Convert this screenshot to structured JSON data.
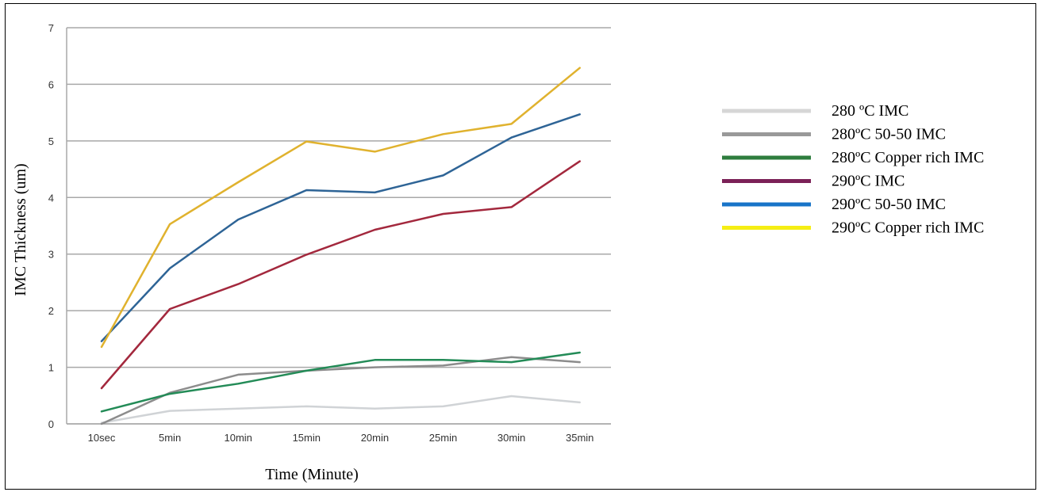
{
  "chart_data": {
    "type": "line",
    "title": "",
    "xlabel": "Time (Minute)",
    "ylabel": "IMC Thickness (um)",
    "categories": [
      "10sec",
      "5min",
      "10min",
      "15min",
      "20min",
      "25min",
      "30min",
      "35min"
    ],
    "ylim": [
      0,
      7
    ],
    "yticks": [
      "0",
      "1",
      "2",
      "3",
      "4",
      "5",
      "6",
      "7"
    ],
    "grid": true,
    "legend_position": "right",
    "series": [
      {
        "name": "280 ºC IMC",
        "color": "#d0d3d6",
        "legend_color": "#d6d6d6",
        "values": [
          0.02,
          0.23,
          0.27,
          0.31,
          0.27,
          0.31,
          0.49,
          0.38
        ]
      },
      {
        "name": "280ºC 50-50 IMC",
        "color": "#8c8c8c",
        "legend_color": "#999999",
        "values": [
          0.0,
          0.55,
          0.87,
          0.94,
          1.0,
          1.03,
          1.18,
          1.09
        ]
      },
      {
        "name": "280ºC Copper rich IMC",
        "color": "#238b57",
        "legend_color": "#2e7d3e",
        "values": [
          0.22,
          0.53,
          0.71,
          0.94,
          1.13,
          1.13,
          1.09,
          1.26
        ]
      },
      {
        "name": "290ºC IMC",
        "color": "#a3283d",
        "legend_color": "#7b2157",
        "values": [
          0.63,
          2.03,
          2.47,
          2.99,
          3.43,
          3.71,
          3.83,
          4.64
        ]
      },
      {
        "name": "290ºC 50-50 IMC",
        "color": "#2e6496",
        "legend_color": "#1874c8",
        "values": [
          1.46,
          2.75,
          3.61,
          4.13,
          4.09,
          4.39,
          5.06,
          5.47
        ]
      },
      {
        "name": "290ºC Copper rich IMC",
        "color": "#e0b22e",
        "legend_color": "#f5ee14",
        "values": [
          1.36,
          3.53,
          4.27,
          4.99,
          4.81,
          5.12,
          5.3,
          6.29
        ]
      }
    ]
  }
}
